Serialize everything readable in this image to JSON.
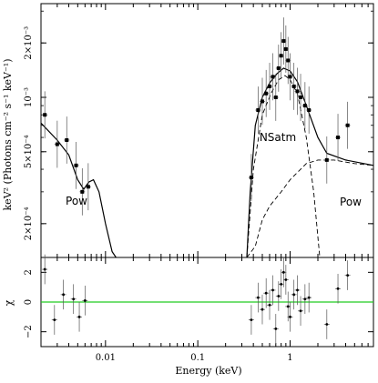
{
  "chart_data": [
    {
      "type": "scatter",
      "panel": "spectrum",
      "xlabel": "Energy (keV)",
      "ylabel": "keV² (Photons cm⁻² s⁻¹ keV⁻¹)",
      "xscale": "log",
      "yscale": "log",
      "xlim": [
        0.002,
        8
      ],
      "ylim": [
        0.00013,
        0.0033
      ],
      "yticks": [
        {
          "value": 0.0002,
          "label": "2×10⁻⁴"
        },
        {
          "value": 0.0005,
          "label": "5×10⁻⁴"
        },
        {
          "value": 0.001,
          "label": "10⁻³"
        },
        {
          "value": 0.002,
          "label": "2×10⁻³"
        }
      ],
      "annotations": [
        "Pow",
        "NSatm",
        "Pow"
      ],
      "series": [
        {
          "kind": "data",
          "points": [
            {
              "x": 0.0022,
              "y": 0.0008
            },
            {
              "x": 0.003,
              "y": 0.00055
            },
            {
              "x": 0.0038,
              "y": 0.00058
            },
            {
              "x": 0.0048,
              "y": 0.00042
            },
            {
              "x": 0.0056,
              "y": 0.0003
            },
            {
              "x": 0.0065,
              "y": 0.00032
            },
            {
              "x": 0.38,
              "y": 0.00036
            },
            {
              "x": 0.45,
              "y": 0.00085
            },
            {
              "x": 0.5,
              "y": 0.00095
            },
            {
              "x": 0.55,
              "y": 0.00105
            },
            {
              "x": 0.6,
              "y": 0.00115
            },
            {
              "x": 0.65,
              "y": 0.0013
            },
            {
              "x": 0.7,
              "y": 0.001
            },
            {
              "x": 0.75,
              "y": 0.00145
            },
            {
              "x": 0.8,
              "y": 0.0017
            },
            {
              "x": 0.85,
              "y": 0.00205
            },
            {
              "x": 0.9,
              "y": 0.00185
            },
            {
              "x": 0.95,
              "y": 0.0016
            },
            {
              "x": 1.0,
              "y": 0.0013
            },
            {
              "x": 1.1,
              "y": 0.00115
            },
            {
              "x": 1.2,
              "y": 0.00108
            },
            {
              "x": 1.3,
              "y": 0.001
            },
            {
              "x": 1.45,
              "y": 0.0009
            },
            {
              "x": 1.6,
              "y": 0.00085
            },
            {
              "x": 2.5,
              "y": 0.00045
            },
            {
              "x": 3.3,
              "y": 0.0006
            },
            {
              "x": 4.2,
              "y": 0.0007
            }
          ]
        },
        {
          "kind": "model-total",
          "points": [
            {
              "x": 0.002,
              "y": 0.00072
            },
            {
              "x": 0.003,
              "y": 0.00058
            },
            {
              "x": 0.004,
              "y": 0.00048
            },
            {
              "x": 0.005,
              "y": 0.00035
            },
            {
              "x": 0.0058,
              "y": 0.00031
            },
            {
              "x": 0.0066,
              "y": 0.00034
            },
            {
              "x": 0.0074,
              "y": 0.00035
            },
            {
              "x": 0.0085,
              "y": 0.0003
            },
            {
              "x": 0.01,
              "y": 0.0002
            },
            {
              "x": 0.0118,
              "y": 0.00014
            },
            {
              "x": 0.013,
              "y": 0.00013
            },
            {
              "x": 0.34,
              "y": 0.00013
            },
            {
              "x": 0.37,
              "y": 0.0003
            },
            {
              "x": 0.42,
              "y": 0.0007
            },
            {
              "x": 0.5,
              "y": 0.001
            },
            {
              "x": 0.6,
              "y": 0.0012
            },
            {
              "x": 0.72,
              "y": 0.00135
            },
            {
              "x": 0.85,
              "y": 0.00145
            },
            {
              "x": 1.0,
              "y": 0.0014
            },
            {
              "x": 1.2,
              "y": 0.00122
            },
            {
              "x": 1.5,
              "y": 0.0009
            },
            {
              "x": 2.0,
              "y": 0.0006
            },
            {
              "x": 2.5,
              "y": 0.00049
            },
            {
              "x": 4.0,
              "y": 0.00045
            },
            {
              "x": 8.0,
              "y": 0.00042
            }
          ]
        },
        {
          "kind": "model-component",
          "points": [
            {
              "x": 0.34,
              "y": 0.00013
            },
            {
              "x": 0.4,
              "y": 0.0004
            },
            {
              "x": 0.5,
              "y": 0.0008
            },
            {
              "x": 0.62,
              "y": 0.00105
            },
            {
              "x": 0.75,
              "y": 0.00125
            },
            {
              "x": 0.88,
              "y": 0.00132
            },
            {
              "x": 1.0,
              "y": 0.00125
            },
            {
              "x": 1.2,
              "y": 0.00105
            },
            {
              "x": 1.5,
              "y": 0.0006
            },
            {
              "x": 1.8,
              "y": 0.0003
            },
            {
              "x": 2.1,
              "y": 0.00013
            }
          ]
        },
        {
          "kind": "model-component",
          "points": [
            {
              "x": 0.34,
              "y": 0.00013
            },
            {
              "x": 0.42,
              "y": 0.00015
            },
            {
              "x": 0.5,
              "y": 0.00021
            },
            {
              "x": 0.6,
              "y": 0.00025
            },
            {
              "x": 0.8,
              "y": 0.0003
            },
            {
              "x": 1.0,
              "y": 0.00035
            },
            {
              "x": 1.5,
              "y": 0.00043
            },
            {
              "x": 2.0,
              "y": 0.00045
            },
            {
              "x": 3.0,
              "y": 0.00045
            },
            {
              "x": 5.0,
              "y": 0.00043
            },
            {
              "x": 8.0,
              "y": 0.00042
            }
          ]
        }
      ]
    },
    {
      "type": "scatter",
      "panel": "residuals",
      "xlabel": "Energy (keV)",
      "ylabel": "χ",
      "xscale": "log",
      "xlim": [
        0.002,
        8
      ],
      "ylim": [
        -3,
        3
      ],
      "yticks": [
        {
          "value": -2,
          "label": "−2"
        },
        {
          "value": 0,
          "label": "0"
        },
        {
          "value": 2,
          "label": "2"
        }
      ],
      "xticks": [
        {
          "value": 0.01,
          "label": "0.01"
        },
        {
          "value": 0.1,
          "label": "0.1"
        },
        {
          "value": 1,
          "label": "1"
        }
      ],
      "reference_line": {
        "y": 0,
        "color": "#22cc22"
      },
      "series": [
        {
          "kind": "residuals",
          "points": [
            {
              "x": 0.0022,
              "y": 2.2
            },
            {
              "x": 0.0028,
              "y": -1.2
            },
            {
              "x": 0.0035,
              "y": 0.5
            },
            {
              "x": 0.0045,
              "y": 0.2
            },
            {
              "x": 0.0052,
              "y": -1.0
            },
            {
              "x": 0.006,
              "y": 0.1
            },
            {
              "x": 0.38,
              "y": -1.2
            },
            {
              "x": 0.45,
              "y": 0.3
            },
            {
              "x": 0.5,
              "y": -0.5
            },
            {
              "x": 0.55,
              "y": 0.6
            },
            {
              "x": 0.6,
              "y": -0.2
            },
            {
              "x": 0.65,
              "y": 0.8
            },
            {
              "x": 0.7,
              "y": -1.8
            },
            {
              "x": 0.75,
              "y": 0.4
            },
            {
              "x": 0.8,
              "y": 1.2
            },
            {
              "x": 0.85,
              "y": 2.0
            },
            {
              "x": 0.9,
              "y": 1.5
            },
            {
              "x": 0.95,
              "y": -0.3
            },
            {
              "x": 1.0,
              "y": -1.0
            },
            {
              "x": 1.1,
              "y": 0.5
            },
            {
              "x": 1.2,
              "y": 0.8
            },
            {
              "x": 1.3,
              "y": -0.6
            },
            {
              "x": 1.45,
              "y": 0.2
            },
            {
              "x": 1.6,
              "y": 0.3
            },
            {
              "x": 2.5,
              "y": -1.5
            },
            {
              "x": 3.3,
              "y": 0.9
            },
            {
              "x": 4.2,
              "y": 1.8
            }
          ]
        }
      ]
    }
  ]
}
